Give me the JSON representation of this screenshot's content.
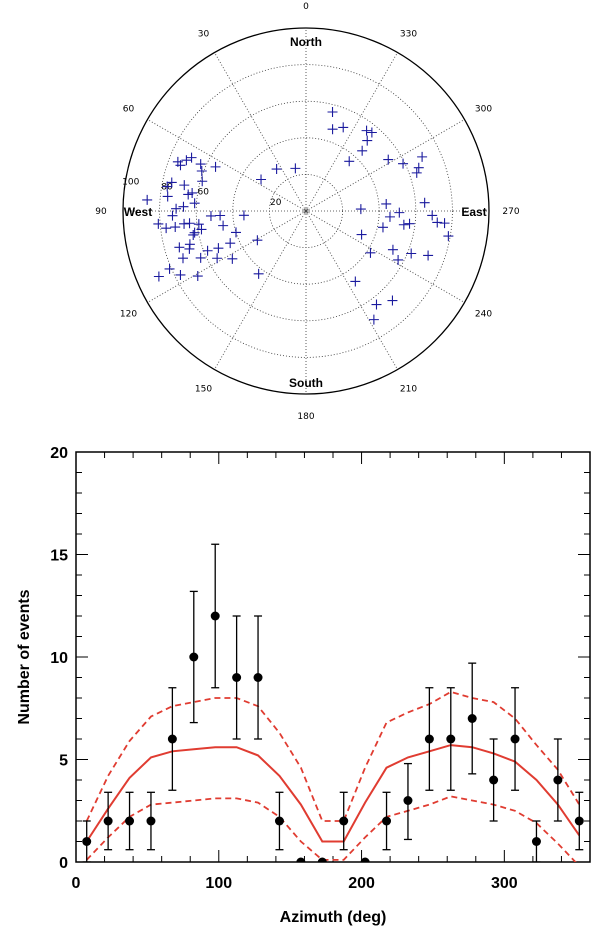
{
  "chart_data": [
    {
      "type": "scatter",
      "coordinate_system": "polar",
      "directions": {
        "north": "North",
        "south": "South",
        "east": "East",
        "west": "West"
      },
      "angle_labels": [
        "0",
        "30",
        "60",
        "90",
        "120",
        "150",
        "180",
        "210",
        "240",
        "270",
        "300",
        "330"
      ],
      "radial_labels": [
        "20",
        "60",
        "80",
        "100"
      ],
      "marker": "+",
      "marker_color": "#1a1a9e",
      "points_azimuth_zenith": [
        [
          94,
          34
        ],
        [
          121,
          31
        ],
        [
          107,
          40
        ],
        [
          113,
          45
        ],
        [
          113,
          52
        ],
        [
          100,
          46
        ],
        [
          93,
          52
        ],
        [
          97,
          59
        ],
        [
          86,
          61
        ],
        [
          81,
          63
        ],
        [
          89,
          71
        ],
        [
          84,
          76
        ],
        [
          86,
          87
        ],
        [
          82,
          65
        ],
        [
          78,
          68
        ],
        [
          74,
          59
        ],
        [
          70,
          73
        ],
        [
          64,
          55
        ],
        [
          66,
          63
        ],
        [
          65,
          69
        ],
        [
          67,
          71
        ],
        [
          69,
          75
        ],
        [
          93,
          47
        ],
        [
          100,
          58
        ],
        [
          101,
          62
        ],
        [
          96,
          64
        ],
        [
          96,
          67
        ],
        [
          88,
          67
        ],
        [
          92,
          73
        ],
        [
          97,
          77
        ],
        [
          95,
          81
        ],
        [
          106,
          66
        ],
        [
          108,
          67
        ],
        [
          106,
          72
        ],
        [
          111,
          72
        ],
        [
          117,
          77
        ],
        [
          114,
          63
        ],
        [
          112,
          58
        ],
        [
          118,
          55
        ],
        [
          121,
          69
        ],
        [
          113,
          81
        ],
        [
          114,
          88
        ],
        [
          123,
          48
        ],
        [
          143,
          43
        ],
        [
          69,
          61
        ],
        [
          55,
          30
        ],
        [
          35,
          28
        ],
        [
          14,
          24
        ],
        [
          317,
          45
        ],
        [
          323,
          55
        ],
        [
          302,
          53
        ],
        [
          319,
          51
        ],
        [
          320,
          56
        ],
        [
          342,
          47
        ],
        [
          345,
          56
        ],
        [
          336,
          50
        ],
        [
          319,
          36
        ],
        [
          272,
          30
        ],
        [
          275,
          44
        ],
        [
          262,
          54
        ],
        [
          263,
          57
        ],
        [
          274,
          65
        ],
        [
          268,
          69
        ],
        [
          265,
          72
        ],
        [
          265,
          76
        ],
        [
          260,
          79
        ],
        [
          247,
          33
        ],
        [
          246,
          52
        ],
        [
          242,
          57
        ],
        [
          248,
          62
        ],
        [
          250,
          71
        ],
        [
          296,
          59
        ],
        [
          295,
          70
        ],
        [
          289,
          64
        ],
        [
          291,
          66
        ],
        [
          269,
          51
        ],
        [
          266,
          46
        ],
        [
          224,
          68
        ],
        [
          215,
          47
        ],
        [
          217,
          64
        ],
        [
          212,
          70
        ],
        [
          258,
          43
        ],
        [
          237,
          42
        ],
        [
          102,
          63
        ],
        [
          97,
          72
        ],
        [
          78,
          75
        ],
        [
          80,
          77
        ]
      ]
    },
    {
      "type": "line",
      "xlabel": "Azimuth (deg)",
      "ylabel": "Number of events",
      "xlim": [
        0,
        360
      ],
      "ylim": [
        0,
        20
      ],
      "xticks": [
        "0",
        "100",
        "200",
        "300"
      ],
      "yticks": [
        "0",
        "5",
        "10",
        "15",
        "20"
      ],
      "points_color": "#000000",
      "line_color": "#e03c31",
      "observed": {
        "x": [
          7.5,
          22.5,
          37.5,
          52.5,
          67.5,
          82.5,
          97.5,
          112.5,
          127.5,
          142.5,
          157.5,
          172.5,
          187.5,
          202.5,
          217.5,
          232.5,
          247.5,
          262.5,
          277.5,
          292.5,
          307.5,
          322.5,
          337.5,
          352.5
        ],
        "y": [
          1,
          2,
          2,
          2,
          6,
          10,
          12,
          9,
          9,
          2,
          0,
          0,
          2,
          0,
          2,
          3,
          6,
          6,
          7,
          4,
          6,
          1,
          4,
          2
        ],
        "err_low": [
          0,
          0.6,
          0.6,
          0.6,
          3.5,
          6.8,
          8.5,
          6,
          6,
          0.6,
          0,
          0,
          0.6,
          0,
          0.6,
          1.1,
          3.5,
          3.5,
          4.3,
          2,
          3.5,
          0,
          2,
          0.6
        ],
        "err_high": [
          2,
          3.4,
          3.4,
          3.4,
          8.5,
          13.2,
          15.5,
          12,
          12,
          3.4,
          0,
          0,
          3.4,
          0,
          3.4,
          4.8,
          8.5,
          8.5,
          9.7,
          6,
          8.5,
          2,
          6,
          3.4
        ]
      },
      "expected": {
        "x": [
          7.5,
          22.5,
          37.5,
          52.5,
          67.5,
          82.5,
          97.5,
          112.5,
          127.5,
          142.5,
          157.5,
          172.5,
          187.5,
          202.5,
          217.5,
          232.5,
          247.5,
          262.5,
          277.5,
          292.5,
          307.5,
          322.5,
          337.5,
          352.5
        ],
        "mean": [
          1.0,
          2.6,
          4.1,
          5.1,
          5.4,
          5.5,
          5.6,
          5.6,
          5.2,
          4.2,
          2.8,
          1.0,
          1.0,
          2.9,
          4.6,
          5.1,
          5.4,
          5.7,
          5.6,
          5.3,
          4.9,
          4.0,
          2.8,
          1.3
        ],
        "upper": [
          2.0,
          4.2,
          5.9,
          7.1,
          7.6,
          7.8,
          8.0,
          8.0,
          7.6,
          6.3,
          4.6,
          2.0,
          2.0,
          4.6,
          6.8,
          7.3,
          7.7,
          8.3,
          8.0,
          7.8,
          7.0,
          5.7,
          4.5,
          2.8
        ],
        "lower": [
          0.1,
          1.2,
          2.2,
          2.8,
          2.9,
          3.0,
          3.1,
          3.1,
          2.9,
          2.2,
          1.0,
          0.1,
          0.1,
          1.2,
          2.2,
          2.5,
          2.8,
          3.2,
          3.0,
          2.8,
          2.5,
          1.9,
          0.9,
          -0.2
        ]
      }
    }
  ]
}
